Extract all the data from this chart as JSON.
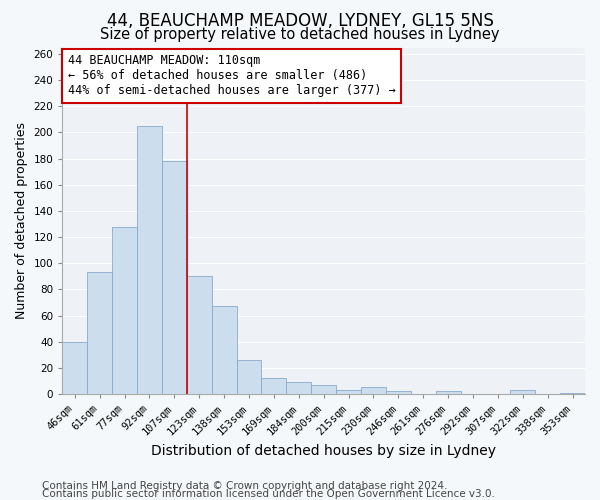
{
  "title1": "44, BEAUCHAMP MEADOW, LYDNEY, GL15 5NS",
  "title2": "Size of property relative to detached houses in Lydney",
  "xlabel": "Distribution of detached houses by size in Lydney",
  "ylabel": "Number of detached properties",
  "categories": [
    "46sqm",
    "61sqm",
    "77sqm",
    "92sqm",
    "107sqm",
    "123sqm",
    "138sqm",
    "153sqm",
    "169sqm",
    "184sqm",
    "200sqm",
    "215sqm",
    "230sqm",
    "246sqm",
    "261sqm",
    "276sqm",
    "292sqm",
    "307sqm",
    "322sqm",
    "338sqm",
    "353sqm"
  ],
  "values": [
    40,
    93,
    128,
    205,
    178,
    90,
    67,
    26,
    12,
    9,
    7,
    3,
    5,
    2,
    0,
    2,
    0,
    0,
    3,
    0,
    1
  ],
  "bar_color": "#ccdded",
  "bar_edge_color": "#88aacc",
  "reference_line_x": 4.5,
  "annotation_text": "44 BEAUCHAMP MEADOW: 110sqm\n← 56% of detached houses are smaller (486)\n44% of semi-detached houses are larger (377) →",
  "annotation_box_facecolor": "#ffffff",
  "annotation_box_edgecolor": "#cc0000",
  "ylim": [
    0,
    265
  ],
  "yticks": [
    0,
    20,
    40,
    60,
    80,
    100,
    120,
    140,
    160,
    180,
    200,
    220,
    240,
    260
  ],
  "footnote1": "Contains HM Land Registry data © Crown copyright and database right 2024.",
  "footnote2": "Contains public sector information licensed under the Open Government Licence v3.0.",
  "bg_color": "#f5f8fa",
  "plot_bg_color": "#eef2f7",
  "grid_color": "#ffffff",
  "title1_fontsize": 12,
  "title2_fontsize": 10.5,
  "xlabel_fontsize": 10,
  "ylabel_fontsize": 9,
  "tick_fontsize": 7.5,
  "annotation_fontsize": 8.5,
  "footnote_fontsize": 7.5
}
